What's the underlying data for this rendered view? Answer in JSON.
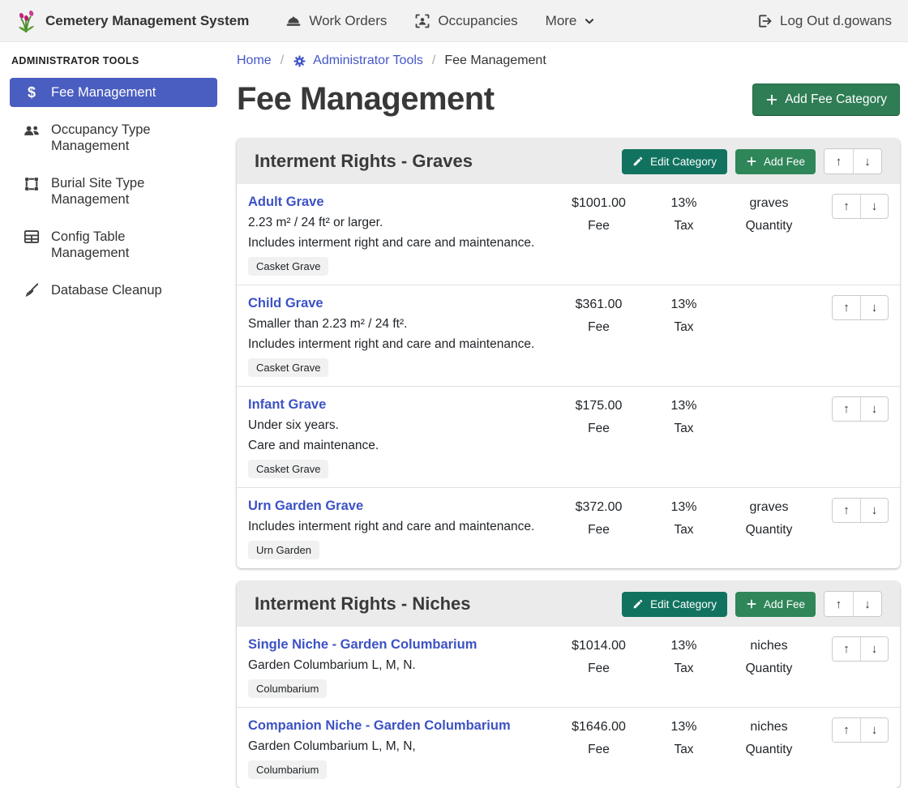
{
  "navbar": {
    "brand": "Cemetery Management System",
    "items": [
      {
        "label": "Work Orders",
        "icon": "hard-hat-icon"
      },
      {
        "label": "Occupancies",
        "icon": "occupancy-frame-icon"
      },
      {
        "label": "More",
        "icon": "chevron-down-icon"
      }
    ],
    "logout_label": "Log Out d.gowans"
  },
  "sidebar": {
    "heading": "ADMINISTRATOR TOOLS",
    "items": [
      {
        "label": "Fee Management",
        "icon": "dollar-icon",
        "active": true
      },
      {
        "label": "Occupancy Type Management",
        "icon": "users-icon",
        "active": false
      },
      {
        "label": "Burial Site Type Management",
        "icon": "crop-frame-icon",
        "active": false
      },
      {
        "label": "Config Table Management",
        "icon": "table-icon",
        "active": false
      },
      {
        "label": "Database Cleanup",
        "icon": "broom-icon",
        "active": false
      }
    ]
  },
  "breadcrumb": {
    "items": [
      {
        "label": "Home"
      },
      {
        "label": "Administrator Tools",
        "icon": "gear-icon"
      },
      {
        "label": "Fee Management"
      }
    ]
  },
  "page": {
    "title": "Fee Management",
    "add_category_label": "Add Fee Category"
  },
  "category_actions": {
    "edit_label": "Edit Category",
    "add_fee_label": "Add Fee"
  },
  "column_labels": {
    "fee": "Fee",
    "tax": "Tax",
    "quantity": "Quantity"
  },
  "categories": [
    {
      "title": "Interment Rights - Graves",
      "fees": [
        {
          "name": "Adult Grave",
          "descriptions": [
            "2.23 m² / 24 ft² or larger.",
            "Includes interment right and care and maintenance."
          ],
          "badge": "Casket Grave",
          "fee": "$1001.00",
          "tax": "13%",
          "quantity": "graves"
        },
        {
          "name": "Child Grave",
          "descriptions": [
            "Smaller than 2.23 m² / 24 ft².",
            "Includes interment right and care and maintenance."
          ],
          "badge": "Casket Grave",
          "fee": "$361.00",
          "tax": "13%",
          "quantity": ""
        },
        {
          "name": "Infant Grave",
          "descriptions": [
            "Under six years.",
            "Care and maintenance."
          ],
          "badge": "Casket Grave",
          "fee": "$175.00",
          "tax": "13%",
          "quantity": ""
        },
        {
          "name": "Urn Garden Grave",
          "descriptions": [
            "Includes interment right and care and maintenance."
          ],
          "badge": "Urn Garden",
          "fee": "$372.00",
          "tax": "13%",
          "quantity": "graves"
        }
      ]
    },
    {
      "title": "Interment Rights - Niches",
      "fees": [
        {
          "name": "Single Niche - Garden Columbarium",
          "descriptions": [
            "Garden Columbarium L, M, N."
          ],
          "badge": "Columbarium",
          "fee": "$1014.00",
          "tax": "13%",
          "quantity": "niches"
        },
        {
          "name": "Companion Niche - Garden Columbarium",
          "descriptions": [
            "Garden Columbarium L, M, N,"
          ],
          "badge": "Columbarium",
          "fee": "$1646.00",
          "tax": "13%",
          "quantity": "niches"
        }
      ]
    }
  ],
  "colors": {
    "sidebar_active": "#4a5dc0",
    "link_blue": "#3d52c4",
    "add_category_green": "#2e7d54",
    "edit_teal": "#11735f",
    "add_fee_green": "#2f8659",
    "card_header_bg": "#ebebeb",
    "navbar_bg": "#f2f2f2"
  }
}
